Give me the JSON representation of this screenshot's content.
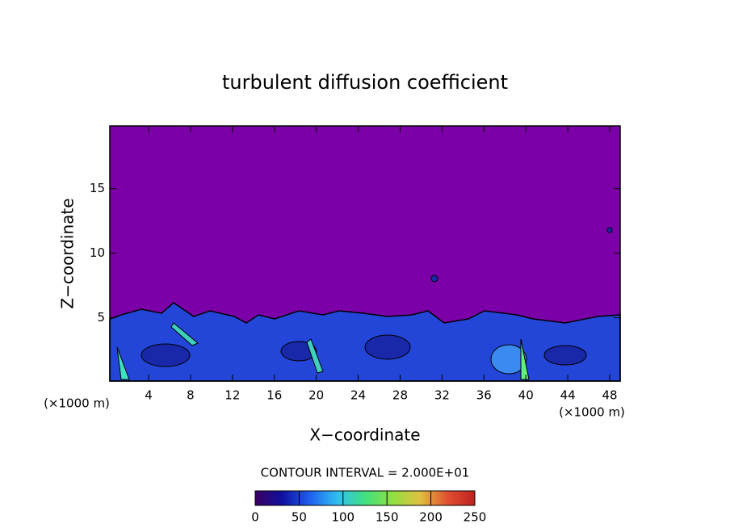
{
  "chart_data": {
    "type": "heatmap",
    "title": "turbulent diffusion coefficient",
    "x_label": "X−coordinate",
    "y_label": "Z−coordinate",
    "x_unit": "(×1000 m)",
    "y_unit": "(×1000 m)",
    "xlim": [
      0.3,
      49
    ],
    "ylim": [
      0.1,
      19.85
    ],
    "xticks": [
      4,
      8,
      12,
      16,
      20,
      24,
      28,
      32,
      36,
      40,
      44,
      48
    ],
    "yticks": [
      5,
      10,
      15
    ],
    "background_color": "#7c00a8",
    "contour_interval": "CONTOUR INTERVAL = 2.000E+01",
    "colorbar": {
      "lim": [
        0,
        250
      ],
      "ticks": [
        0,
        50,
        100,
        150,
        200,
        250
      ],
      "colors": [
        "#3a0060",
        "#1010a0",
        "#2060f0",
        "#30c0f0",
        "#40e080",
        "#90e040",
        "#e0c040",
        "#e05030",
        "#c02020"
      ]
    }
  }
}
